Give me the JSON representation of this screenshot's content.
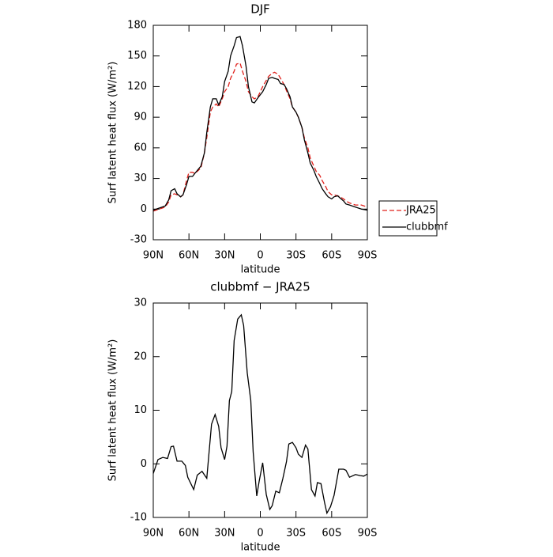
{
  "chart_data": [
    {
      "type": "line",
      "title": "DJF",
      "xlabel": "latitude",
      "ylabel": "Surf latent heat flux (W/m²)",
      "x": [
        90,
        85,
        80,
        77,
        75,
        72,
        70,
        67,
        65,
        62,
        60,
        57,
        55,
        50,
        47,
        45,
        42,
        40,
        37,
        35,
        32,
        30,
        27,
        25,
        22,
        20,
        17,
        15,
        12,
        10,
        7,
        5,
        2,
        0,
        -2,
        -5,
        -7,
        -10,
        -12,
        -15,
        -17,
        -20,
        -22,
        -25,
        -27,
        -30,
        -32,
        -35,
        -37,
        -40,
        -42,
        -45,
        -47,
        -50,
        -52,
        -55,
        -57,
        -60,
        -62,
        -65,
        -67,
        -70,
        -72,
        -75,
        -80,
        -85,
        -90
      ],
      "series": [
        {
          "name": "JRA25",
          "color": "#e0201b",
          "dash": true,
          "values": [
            -2,
            0,
            2,
            7,
            14,
            15,
            14,
            12,
            14,
            28,
            36,
            36,
            35,
            40,
            55,
            70,
            95,
            100,
            103,
            100,
            108,
            115,
            120,
            128,
            135,
            142,
            143,
            135,
            125,
            115,
            110,
            108,
            110,
            115,
            120,
            126,
            130,
            133,
            134,
            132,
            128,
            122,
            116,
            108,
            100,
            95,
            90,
            80,
            70,
            60,
            50,
            42,
            37,
            33,
            28,
            22,
            17,
            14,
            14,
            13,
            12,
            10,
            8,
            6,
            4,
            4,
            2
          ]
        },
        {
          "name": "clubbmf",
          "color": "#000000",
          "dash": false,
          "values": [
            -1,
            1,
            3,
            9,
            18,
            20,
            15,
            12,
            14,
            24,
            32,
            32,
            35,
            42,
            55,
            75,
            100,
            108,
            108,
            102,
            110,
            125,
            135,
            150,
            160,
            168,
            169,
            160,
            140,
            120,
            105,
            104,
            109,
            112,
            115,
            122,
            128,
            129,
            128,
            127,
            123,
            122,
            118,
            110,
            100,
            95,
            90,
            80,
            68,
            55,
            45,
            38,
            32,
            25,
            20,
            15,
            12,
            10,
            12,
            13,
            11,
            8,
            5,
            4,
            2,
            0,
            -1
          ]
        }
      ],
      "xlim": [
        90,
        -90
      ],
      "xticks": [
        {
          "value": 90,
          "label": "90N"
        },
        {
          "value": 60,
          "label": "60N"
        },
        {
          "value": 30,
          "label": "30N"
        },
        0,
        {
          "value": -30,
          "label": "30S"
        },
        {
          "value": -60,
          "label": "60S"
        },
        {
          "value": -90,
          "label": "90S"
        }
      ],
      "ylim": [
        -30,
        180
      ],
      "yticks": [
        -30,
        0,
        30,
        60,
        90,
        120,
        150,
        180
      ],
      "legend": "right"
    },
    {
      "type": "line",
      "title": "clubbmf − JRA25",
      "xlabel": "latitude",
      "ylabel": "Surf latent heat flux (W/m²)",
      "x": [
        90,
        86,
        82,
        78,
        75,
        73,
        70,
        66,
        63,
        61,
        56,
        53,
        49,
        45,
        41,
        38,
        35,
        33,
        30,
        28,
        26,
        24,
        22,
        19,
        16,
        14,
        11,
        8,
        6,
        3,
        1,
        -2,
        -5,
        -8,
        -10,
        -13,
        -16,
        -19,
        -22,
        -24,
        -27,
        -30,
        -32,
        -35,
        -38,
        -40,
        -43,
        -46,
        -48,
        -51,
        -54,
        -56,
        -59,
        -62,
        -66,
        -70,
        -72,
        -75,
        -80,
        -84,
        -87,
        -90
      ],
      "values": [
        -1.8,
        0.8,
        1.2,
        1,
        3.2,
        3.3,
        0.5,
        0.5,
        -0.3,
        -2.5,
        -4.8,
        -2.1,
        -1.4,
        -2.7,
        7.4,
        9.2,
        7,
        3,
        0.8,
        3.3,
        11.8,
        13.5,
        23,
        27,
        27.8,
        25.8,
        17,
        11.8,
        2.2,
        -6,
        -3.3,
        0.2,
        -5.7,
        -8.5,
        -7.8,
        -5.1,
        -5.4,
        -2.7,
        0.4,
        3.7,
        4,
        3,
        1.8,
        1.2,
        3.5,
        2.8,
        -4.8,
        -6,
        -3.5,
        -3.7,
        -7.2,
        -9.2,
        -8,
        -5.9,
        -1,
        -1,
        -1.2,
        -2.5,
        -2,
        -2.2,
        -2.3,
        -1.9
      ],
      "color": "#000000",
      "xlim": [
        90,
        -90
      ],
      "xticks": [
        {
          "value": 90,
          "label": "90N"
        },
        {
          "value": 60,
          "label": "60N"
        },
        {
          "value": 30,
          "label": "30N"
        },
        0,
        {
          "value": -30,
          "label": "30S"
        },
        {
          "value": -60,
          "label": "60S"
        },
        {
          "value": -90,
          "label": "90S"
        }
      ],
      "ylim": [
        -10,
        30
      ],
      "yticks": [
        -10,
        0,
        10,
        20,
        30
      ]
    }
  ]
}
